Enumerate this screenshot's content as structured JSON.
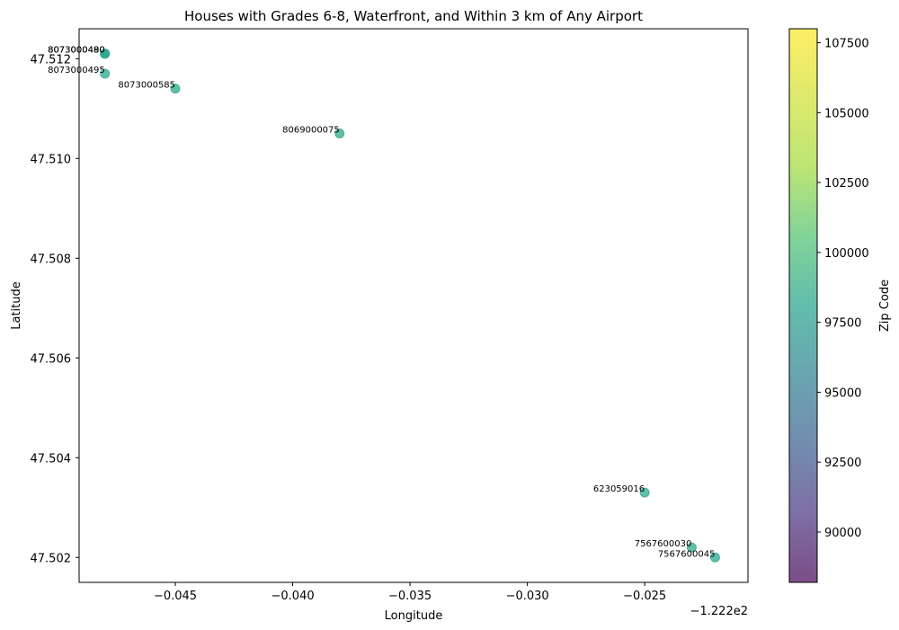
{
  "chart_data": {
    "type": "scatter",
    "title": "Houses with Grades 6-8, Waterfront, and Within 3 km of Any Airport",
    "xlabel": "Longitude",
    "ylabel": "Latitude",
    "x_offset_label": "−1.222e2",
    "xlim": [
      -0.0491,
      -0.0206
    ],
    "ylim": [
      47.5015,
      47.5126
    ],
    "x_ticks": [
      -0.045,
      -0.04,
      -0.035,
      -0.03,
      -0.025
    ],
    "x_tick_labels": [
      "−0.045",
      "−0.040",
      "−0.035",
      "−0.030",
      "−0.025"
    ],
    "y_ticks": [
      47.502,
      47.504,
      47.506,
      47.508,
      47.51,
      47.512
    ],
    "y_tick_labels": [
      "47.502",
      "47.504",
      "47.506",
      "47.508",
      "47.510",
      "47.512"
    ],
    "points": [
      {
        "label": "8073000490",
        "x": -0.048,
        "y": 47.5121,
        "zip": 98178
      },
      {
        "label": "8073000480",
        "x": -0.048,
        "y": 47.5121,
        "zip": 98178
      },
      {
        "label": "8073000495",
        "x": -0.048,
        "y": 47.5117,
        "zip": 98178
      },
      {
        "label": "8073000585",
        "x": -0.045,
        "y": 47.5114,
        "zip": 98178
      },
      {
        "label": "8069000075",
        "x": -0.038,
        "y": 47.5105,
        "zip": 98178
      },
      {
        "label": "623059016",
        "x": -0.025,
        "y": 47.5033,
        "zip": 98178
      },
      {
        "label": "7567600030",
        "x": -0.023,
        "y": 47.5022,
        "zip": 98178
      },
      {
        "label": "7567600045",
        "x": -0.022,
        "y": 47.502,
        "zip": 98178
      }
    ],
    "colorbar": {
      "label": "Zip Code",
      "min": 88200,
      "max": 108000,
      "ticks": [
        90000,
        92500,
        95000,
        97500,
        100000,
        102500,
        105000,
        107500
      ],
      "tick_labels": [
        "90000",
        "92500",
        "95000",
        "97500",
        "100000",
        "102500",
        "105000",
        "107500"
      ],
      "colormap": "viridis",
      "alpha": 0.7
    },
    "grid": false,
    "legend": "none"
  }
}
